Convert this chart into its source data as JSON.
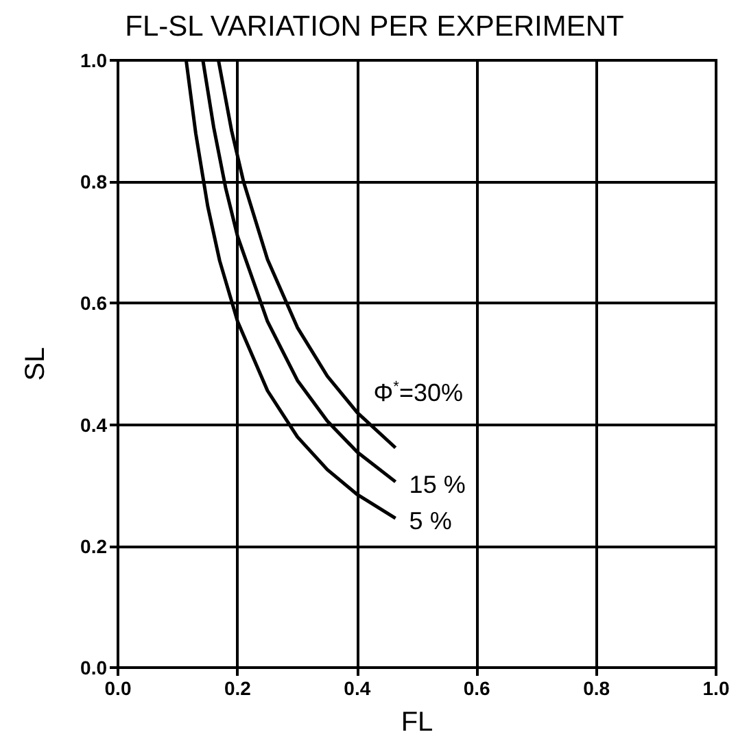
{
  "chart_data": {
    "type": "line",
    "title": "FL-SL VARIATION PER EXPERIMENT",
    "xlabel": "FL",
    "ylabel": "SL",
    "xlim": [
      0,
      1
    ],
    "ylim": [
      0,
      1
    ],
    "xticks": [
      {
        "value": 0,
        "label": "0.0"
      },
      0.2,
      0.4,
      0.6,
      0.8,
      {
        "value": 1,
        "label": "1.0"
      }
    ],
    "yticks": [
      {
        "value": 0,
        "label": "0.0"
      },
      0.2,
      0.4,
      0.6,
      0.8,
      {
        "value": 1,
        "label": "1.0"
      }
    ],
    "grid": true,
    "legend": false,
    "marker": "none",
    "line_style": "solid",
    "series": [
      {
        "name": "Φ$^{*}$=30%",
        "color": "#000000",
        "x": [
          0.168,
          0.19,
          0.21,
          0.25,
          0.3,
          0.35,
          0.4,
          0.464
        ],
        "values": [
          1.0,
          0.884,
          0.8,
          0.672,
          0.56,
          0.48,
          0.42,
          0.362
        ]
      },
      {
        "name": "15 %",
        "color": "#000000",
        "x": [
          0.142,
          0.16,
          0.18,
          0.2,
          0.25,
          0.3,
          0.35,
          0.4,
          0.464
        ],
        "values": [
          1.0,
          0.89,
          0.79,
          0.71,
          0.57,
          0.473,
          0.406,
          0.355,
          0.306
        ]
      },
      {
        "name": "5 %",
        "color": "#000000",
        "x": [
          0.114,
          0.13,
          0.15,
          0.17,
          0.2,
          0.25,
          0.3,
          0.35,
          0.4,
          0.464
        ],
        "values": [
          1.0,
          0.88,
          0.76,
          0.67,
          0.57,
          0.456,
          0.38,
          0.326,
          0.285,
          0.246
        ]
      }
    ]
  }
}
